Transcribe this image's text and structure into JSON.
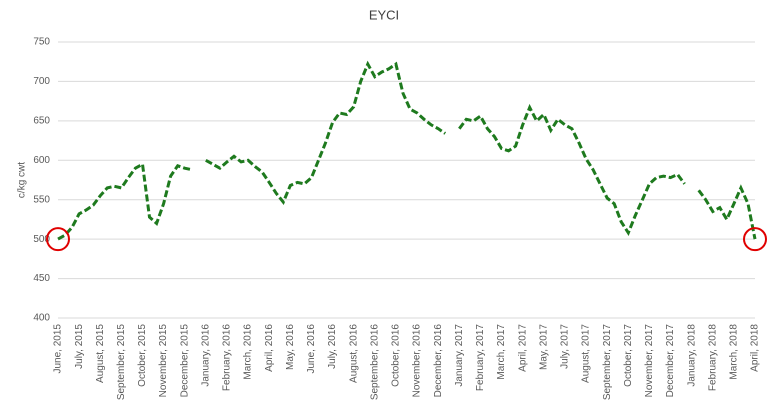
{
  "chart_data": {
    "type": "line",
    "title": "EYCI",
    "y_label": "c/kg cwt",
    "categories": [
      "June, 2015",
      null,
      null,
      "July, 2015",
      null,
      null,
      "August, 2015",
      null,
      null,
      "September, 2015",
      null,
      null,
      "October, 2015",
      null,
      null,
      "November, 2015",
      null,
      null,
      "December, 2015",
      null,
      null,
      "January, 2016",
      null,
      null,
      "February, 2016",
      null,
      null,
      "March, 2016",
      null,
      null,
      "April, 2016",
      null,
      null,
      "May, 2016",
      null,
      null,
      "June, 2016",
      null,
      null,
      "July, 2016",
      null,
      null,
      "August, 2016",
      null,
      null,
      "September, 2016",
      null,
      null,
      "October, 2016",
      null,
      null,
      "November, 2016",
      null,
      null,
      "December, 2016",
      null,
      null,
      "January, 2017",
      null,
      null,
      "February, 2017",
      null,
      null,
      "March, 2017",
      null,
      null,
      "April, 2017",
      null,
      null,
      "May, 2017",
      null,
      null,
      "July, 2017",
      null,
      null,
      "August, 2017",
      null,
      null,
      "September, 2017",
      null,
      null,
      "October, 2017",
      null,
      null,
      "November, 2017",
      null,
      null,
      "December, 2017",
      null,
      null,
      "January, 2018",
      null,
      null,
      "February, 2018",
      null,
      null,
      "March, 2018",
      null,
      null,
      "April, 2018"
    ],
    "series": [
      {
        "name": "EYCI",
        "color": "#1e7a1e",
        "values": [
          500,
          505,
          515,
          532,
          537,
          543,
          555,
          565,
          567,
          565,
          578,
          590,
          595,
          528,
          520,
          545,
          580,
          593,
          590,
          588,
          null,
          600,
          595,
          590,
          598,
          605,
          598,
          600,
          592,
          585,
          572,
          558,
          547,
          568,
          572,
          570,
          578,
          600,
          622,
          648,
          660,
          658,
          668,
          700,
          722,
          706,
          712,
          716,
          722,
          685,
          665,
          660,
          652,
          645,
          640,
          634,
          null,
          640,
          652,
          650,
          656,
          640,
          630,
          615,
          612,
          618,
          645,
          667,
          650,
          658,
          638,
          652,
          645,
          640,
          622,
          602,
          588,
          570,
          552,
          545,
          522,
          508,
          530,
          550,
          570,
          578,
          580,
          578,
          582,
          570,
          null,
          562,
          550,
          535,
          540,
          525,
          545,
          565,
          545,
          500
        ]
      }
    ],
    "ylim": [
      400,
      750
    ],
    "yticks": [
      400,
      450,
      500,
      550,
      600,
      650,
      700,
      750
    ],
    "grid": true
  }
}
